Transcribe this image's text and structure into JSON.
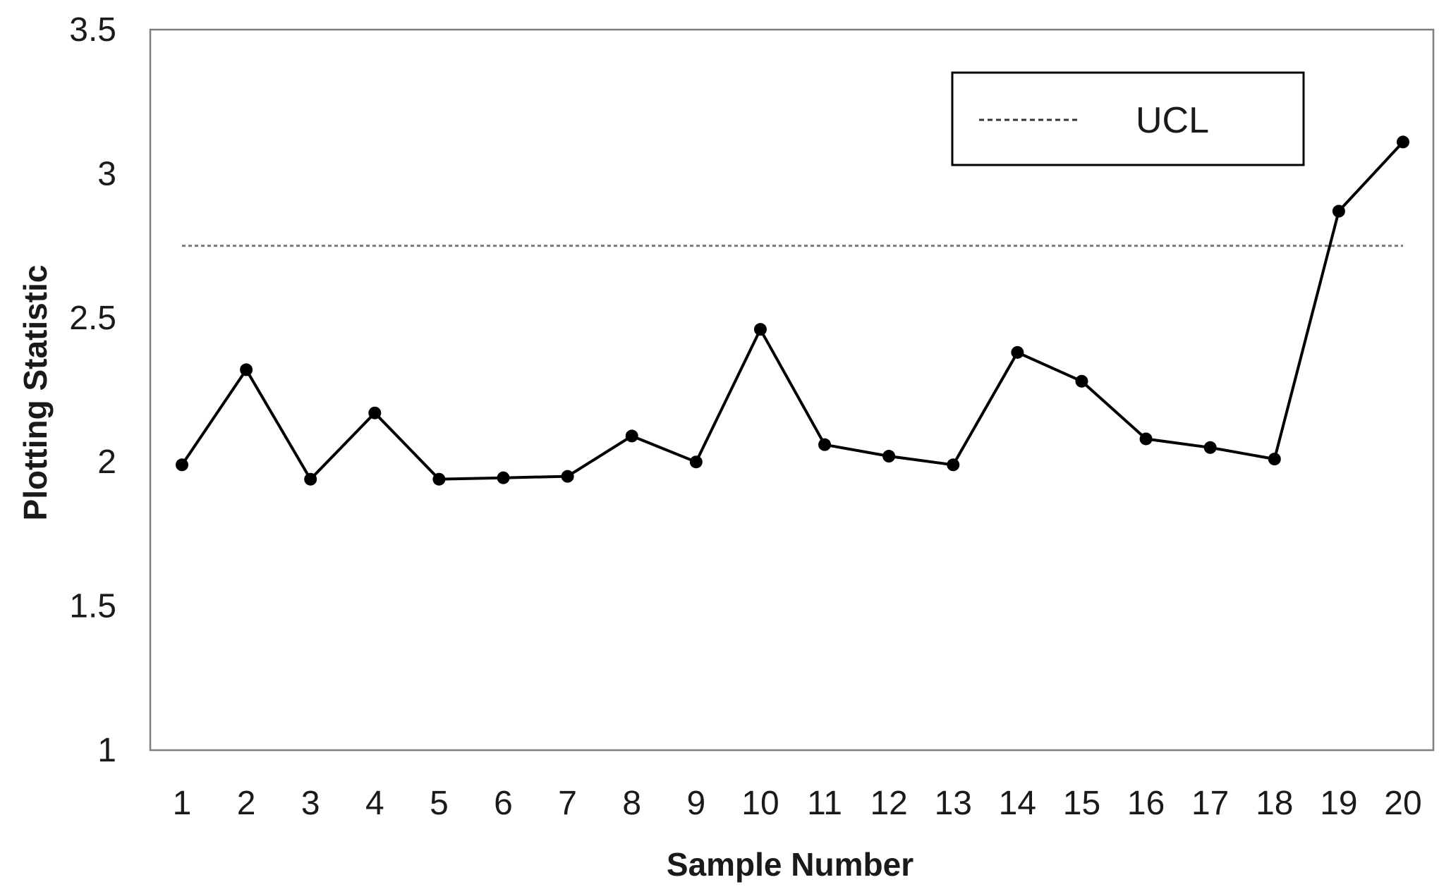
{
  "chart_data": {
    "type": "line",
    "xlabel": "Sample Number",
    "ylabel": "Plotting Statistic",
    "ylim": [
      1,
      3.5
    ],
    "yticks": [
      "1",
      "1.5",
      "2",
      "2.5",
      "3",
      "3.5"
    ],
    "categories": [
      "1",
      "2",
      "3",
      "4",
      "5",
      "6",
      "7",
      "8",
      "9",
      "10",
      "11",
      "12",
      "13",
      "14",
      "15",
      "16",
      "17",
      "18",
      "19",
      "20"
    ],
    "series": [
      {
        "values": [
          1.99,
          2.32,
          1.94,
          2.17,
          1.94,
          1.945,
          1.95,
          2.09,
          2.0,
          2.46,
          2.06,
          2.02,
          1.99,
          2.38,
          2.28,
          2.08,
          2.05,
          2.01,
          2.87,
          3.11
        ],
        "color": "#000000",
        "marker": "circle"
      }
    ],
    "ucl": {
      "value": 2.75,
      "label": "UCL",
      "style": "dashed",
      "color": "#7a7a7a"
    },
    "legend": {
      "position": "top-right",
      "entries": [
        "UCL"
      ]
    },
    "grid": false
  }
}
